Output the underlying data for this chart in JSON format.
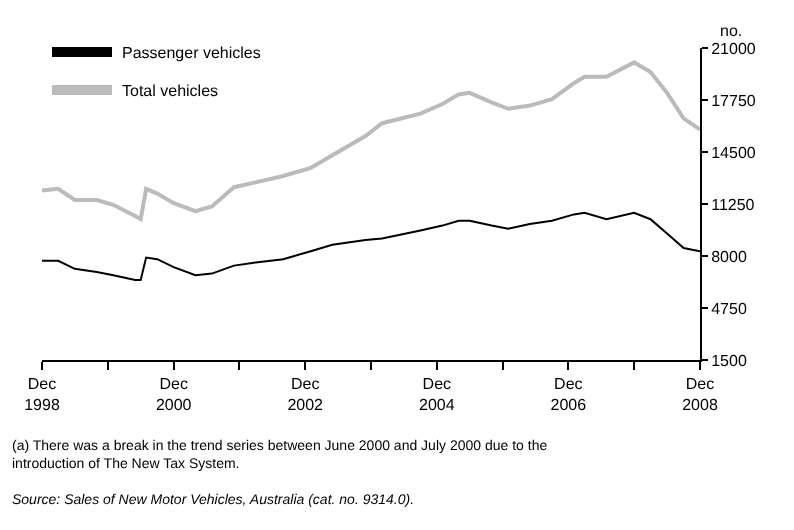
{
  "chart_data": {
    "type": "line",
    "ylabel": "no.",
    "x": [
      "1998-12",
      "1999-03",
      "1999-06",
      "1999-10",
      "2000-01",
      "2000-05",
      "2000-06",
      "2000-07",
      "2000-09",
      "2000-12",
      "2001-04",
      "2001-07",
      "2001-11",
      "2002-03",
      "2002-08",
      "2003-01",
      "2003-05",
      "2003-11",
      "2004-02",
      "2004-09",
      "2005-01",
      "2005-04",
      "2005-06",
      "2005-10",
      "2006-01",
      "2006-05",
      "2006-09",
      "2007-01",
      "2007-03",
      "2007-07",
      "2007-12",
      "2008-03",
      "2008-06",
      "2008-09",
      "2008-12"
    ],
    "series": [
      {
        "name": "Passenger vehicles",
        "color": "#000000",
        "values": [
          7700,
          7700,
          7200,
          7000,
          6800,
          6500,
          6500,
          7900,
          7800,
          7300,
          6800,
          6900,
          7400,
          7600,
          7800,
          8300,
          8700,
          9000,
          9100,
          9600,
          9900,
          10200,
          10200,
          9900,
          9700,
          10000,
          10200,
          10600,
          10700,
          10300,
          10700,
          10300,
          9400,
          8500,
          8300
        ]
      },
      {
        "name": "Total vehicles",
        "color": "#bbbbbb",
        "values": [
          12100,
          12200,
          11500,
          11500,
          11200,
          10500,
          10300,
          12200,
          11900,
          11300,
          10800,
          11100,
          12300,
          12600,
          13000,
          13500,
          14300,
          15500,
          16300,
          16900,
          17500,
          18100,
          18200,
          17600,
          17200,
          17400,
          17800,
          18800,
          19200,
          19200,
          20100,
          19500,
          18200,
          16600,
          15900
        ]
      }
    ],
    "xlim": [
      "1998-12",
      "2008-12"
    ],
    "xticks": [
      {
        "value": "1998-12",
        "label": "Dec\n1998"
      },
      {
        "value": "1999-12",
        "label": null
      },
      {
        "value": "2000-12",
        "label": "Dec\n2000"
      },
      {
        "value": "2001-12",
        "label": null
      },
      {
        "value": "2002-12",
        "label": "Dec\n2002"
      },
      {
        "value": "2003-12",
        "label": null
      },
      {
        "value": "2004-12",
        "label": "Dec\n2004"
      },
      {
        "value": "2005-12",
        "label": null
      },
      {
        "value": "2006-12",
        "label": "Dec\n2006"
      },
      {
        "value": "2007-12",
        "label": null
      },
      {
        "value": "2008-12",
        "label": "Dec\n2008"
      }
    ],
    "ylim": [
      1500,
      21000
    ],
    "yticks": [
      1500,
      4750,
      8000,
      11250,
      14500,
      17750,
      21000
    ],
    "legend": "top left",
    "marker": "none",
    "line_style": "solid",
    "annotations": [
      "(a) There was a break in the trend series between June 2000 and July 2000 due to the introduction of The New Tax System.",
      "Source: Sales of New Motor Vehicles, Australia (cat. no. 9314.0)."
    ]
  }
}
